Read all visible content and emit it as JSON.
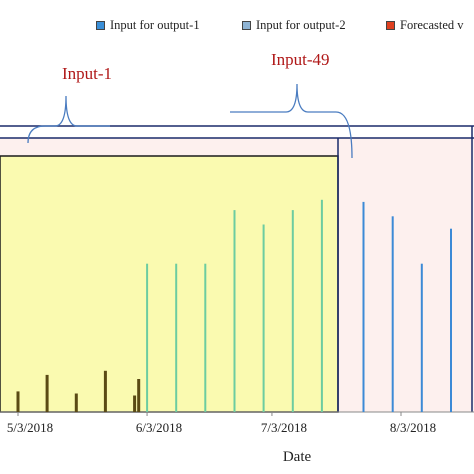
{
  "chart_data": {
    "type": "bar",
    "xlabel": "Date",
    "legend": {
      "placement": "top",
      "items": [
        {
          "label": "Input for output-1",
          "color": "#3a8fd8"
        },
        {
          "label": "Input for output-2",
          "color": "#8fb4d4"
        },
        {
          "label": "Forecasted v",
          "color": "#e04020"
        }
      ]
    },
    "x_ticks": [
      "5/3/2018",
      "6/3/2018",
      "7/3/2018",
      "8/3/2018"
    ],
    "annotations": [
      "Input-1",
      "Input-49"
    ],
    "colors": {
      "input_region": "#fafab0",
      "forecast_region": "#fdf0ee",
      "low_bars": "#5a4a14",
      "green_bars": "#6ccca0",
      "blue_bars": "#3c8ad6",
      "frame": "#1a2a6a"
    },
    "series": [
      {
        "color_key": "low_bars",
        "x": [
          "5/3/2018",
          "5/10/2018",
          "5/17/2018",
          "5/24/2018",
          "5/31/2018",
          "6/1/2018"
        ],
        "values": [
          0.1,
          0.18,
          0.09,
          0.2,
          0.08,
          0.16
        ]
      },
      {
        "color_key": "green_bars",
        "x": [
          "6/3/2018",
          "6/10/2018",
          "6/17/2018",
          "6/24/2018",
          "7/1/2018",
          "7/8/2018",
          "7/15/2018",
          "7/22/2018"
        ],
        "values": [
          0.72,
          0.72,
          0.72,
          0.98,
          0.91,
          0.98,
          1.03,
          0.0
        ]
      },
      {
        "color_key": "blue_bars",
        "x": [
          "7/25/2018",
          "8/1/2018",
          "8/8/2018",
          "8/15/2018"
        ],
        "values": [
          1.02,
          0.95,
          0.72,
          0.89
        ]
      }
    ]
  }
}
